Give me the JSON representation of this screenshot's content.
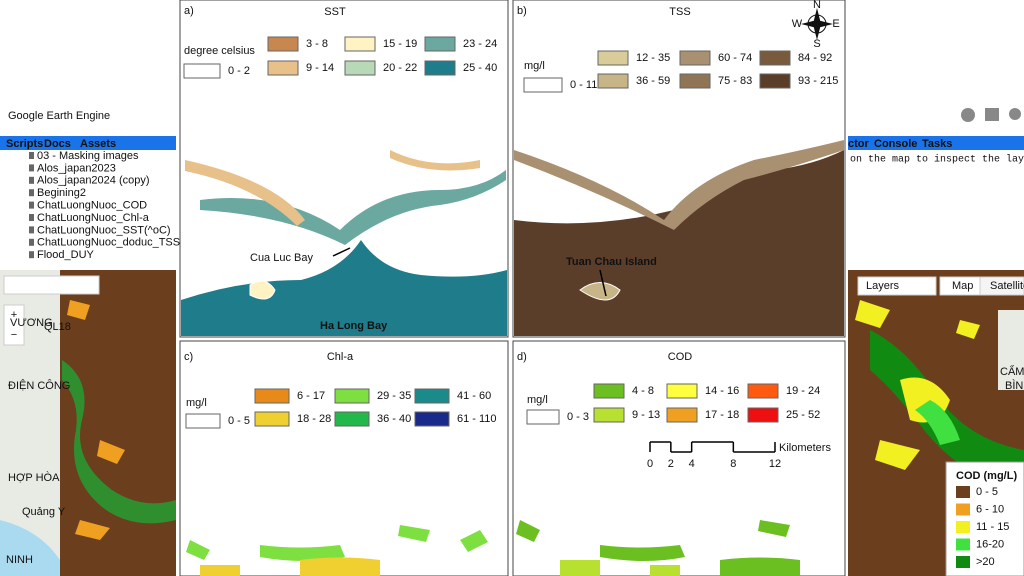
{
  "gee": {
    "logo": "Google Earth Engine",
    "tabs": [
      "Scripts",
      "Docs",
      "Assets"
    ],
    "files": [
      "03 - Masking images",
      "Alos_japan2023",
      "Alos_japan2024 (copy)",
      "Begining2",
      "ChatLuongNuoc_COD",
      "ChatLuongNuoc_Chl-a",
      "ChatLuongNuoc_SST(^oC)",
      "ChatLuongNuoc_doduc_TSS",
      "Flood_DUY"
    ],
    "right_tabs": [
      "ctor",
      "Console",
      "Tasks"
    ],
    "inspector_hint": "on the map to inspect the layers.",
    "map_buttons": [
      "Layers",
      "Map",
      "Satellite"
    ],
    "left_map_labels": [
      "VƯƠNG",
      "QL18",
      "ĐIỆN CÔNG",
      "HỢP HÒA",
      "Quảng Y",
      "NINH"
    ],
    "right_map_labels": [
      "CẨM ĐÔ",
      "BÌNH"
    ],
    "legend": {
      "title": "COD (mg/L)",
      "items": [
        {
          "label": "0 - 5",
          "color": "#6b3f1e"
        },
        {
          "label": "6 - 10",
          "color": "#f0a020"
        },
        {
          "label": "11 - 15",
          "color": "#f2f020"
        },
        {
          "label": "16-20",
          "color": "#40e040"
        },
        {
          "label": ">20",
          "color": "#108a10"
        }
      ]
    }
  },
  "panels": [
    {
      "label": "a)",
      "title": "SST",
      "unit": "degree celsius",
      "legend": [
        {
          "label": "0 - 2",
          "color": "#ffffff"
        },
        {
          "label": "3 - 8",
          "color": "#c8874f"
        },
        {
          "label": "9 - 14",
          "color": "#e8c08a"
        },
        {
          "label": "15 - 19",
          "color": "#fff3c4"
        },
        {
          "label": "20 - 22",
          "color": "#b8d8b8"
        },
        {
          "label": "23 - 24",
          "color": "#6aa8a0"
        },
        {
          "label": "25 - 40",
          "color": "#1f7c8a"
        }
      ],
      "annotations": [
        "Cua Luc Bay",
        "Ha Long Bay"
      ]
    },
    {
      "label": "b)",
      "title": "TSS",
      "unit": "mg/l",
      "legend": [
        {
          "label": "0 - 11",
          "color": "#ffffff"
        },
        {
          "label": "12 - 35",
          "color": "#d9cc9a"
        },
        {
          "label": "36 - 59",
          "color": "#c7b487"
        },
        {
          "label": "60 - 74",
          "color": "#a89070"
        },
        {
          "label": "75 - 83",
          "color": "#8f7555"
        },
        {
          "label": "84 - 92",
          "color": "#7a5a3c"
        },
        {
          "label": "93 - 215",
          "color": "#5a3e2a"
        }
      ],
      "annotations": [
        "Tuan Chau Island"
      ],
      "compass": [
        "N",
        "E",
        "S",
        "W"
      ]
    },
    {
      "label": "c)",
      "title": "Chl-a",
      "unit": "mg/l",
      "legend": [
        {
          "label": "0 - 5",
          "color": "#ffffff"
        },
        {
          "label": "6 - 17",
          "color": "#e88a1a"
        },
        {
          "label": "18 - 28",
          "color": "#f0d030"
        },
        {
          "label": "29 - 35",
          "color": "#7ee040"
        },
        {
          "label": "36 - 40",
          "color": "#22b84a"
        },
        {
          "label": "41 - 60",
          "color": "#1a8a8a"
        },
        {
          "label": "61 - 110",
          "color": "#1a2a8a"
        }
      ]
    },
    {
      "label": "d)",
      "title": "COD",
      "unit": "mg/l",
      "legend": [
        {
          "label": "0 - 3",
          "color": "#ffffff"
        },
        {
          "label": "4 - 8",
          "color": "#6cbf20"
        },
        {
          "label": "9 - 13",
          "color": "#b8e030"
        },
        {
          "label": "14 - 16",
          "color": "#ffff40"
        },
        {
          "label": "17 - 18",
          "color": "#f0a020"
        },
        {
          "label": "19 - 24",
          "color": "#ff5a10"
        },
        {
          "label": "25 - 52",
          "color": "#ee1010"
        }
      ],
      "scale_bar": {
        "ticks": [
          0,
          2,
          4,
          8,
          12
        ],
        "unit": "Kilometers"
      }
    }
  ]
}
